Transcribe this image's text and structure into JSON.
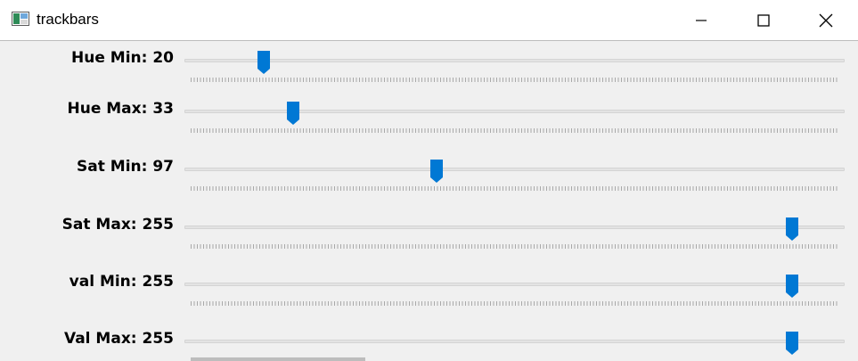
{
  "window": {
    "title": "trackbars",
    "app_icon": "window-app-icon",
    "controls": {
      "minimize_icon": "minimize-icon",
      "maximize_icon": "maximize-icon",
      "close_icon": "close-icon"
    }
  },
  "slider_max": 255,
  "trackbars": [
    {
      "label": "Hue Min: 20",
      "value": 20
    },
    {
      "label": "Hue Max: 33",
      "value": 33
    },
    {
      "label": "Sat Min: 97",
      "value": 97
    },
    {
      "label": "Sat Max: 255",
      "value": 255
    },
    {
      "label": "val Min: 255",
      "value": 255
    },
    {
      "label": "Val Max: 255",
      "value": 255
    }
  ],
  "colors": {
    "thumb": "#0078d4",
    "accent_line": "#c42b4b"
  }
}
